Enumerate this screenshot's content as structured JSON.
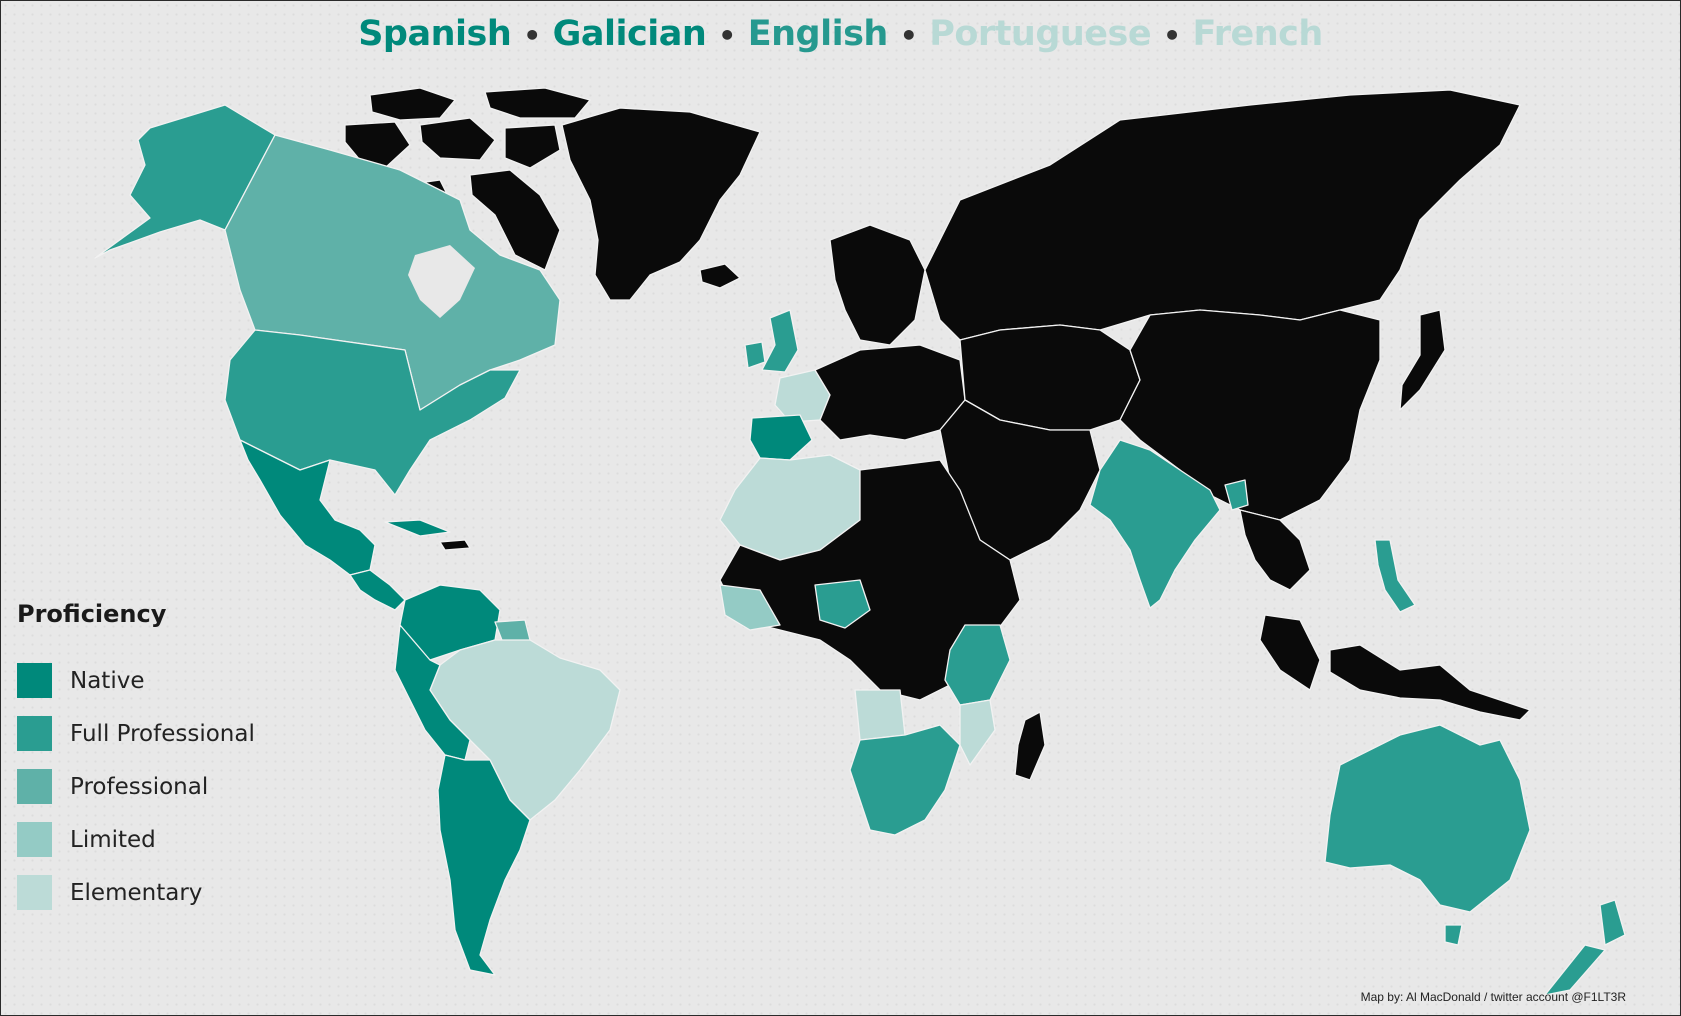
{
  "title": {
    "languages": [
      {
        "name": "Spanish",
        "color": "#00897b"
      },
      {
        "name": "Galician",
        "color": "#00897b"
      },
      {
        "name": "English",
        "color": "#26998f"
      },
      {
        "name": "Portuguese",
        "color": "#b8d9d5"
      },
      {
        "name": "French",
        "color": "#b8d9d5"
      }
    ],
    "separator": "•"
  },
  "legend": {
    "title": "Proficiency",
    "items": [
      {
        "label": "Native",
        "color": "#00897b"
      },
      {
        "label": "Full Professional",
        "color": "#2a9d91"
      },
      {
        "label": "Professional",
        "color": "#5fb1a8"
      },
      {
        "label": "Limited",
        "color": "#94cbc5"
      },
      {
        "label": "Elementary",
        "color": "#bcdbd7"
      }
    ]
  },
  "map_colors": {
    "none": "#0a0a0a",
    "native": "#00897b",
    "full_professional": "#2a9d91",
    "professional": "#5fb1a8",
    "limited": "#94cbc5",
    "elementary": "#bcdbd7"
  },
  "credit": "Map by: Al MacDonald / twitter account @F1LT3R"
}
